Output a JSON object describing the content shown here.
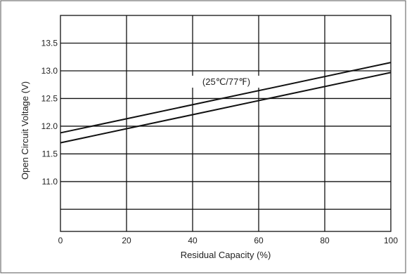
{
  "chart_data": {
    "type": "line",
    "title": "",
    "xlabel": "Residual Capacity (%)",
    "ylabel": "Open Circuit Voltage (V)",
    "xlim": [
      0,
      100
    ],
    "ylim": [
      10.1,
      14.0
    ],
    "x_ticks": [
      "0",
      "20",
      "40",
      "60",
      "80",
      "100"
    ],
    "y_ticks": [
      "11.0",
      "11.5",
      "12.0",
      "12.5",
      "13.0",
      "13.5"
    ],
    "grid": true,
    "annotation": "(25℃/77℉)",
    "series": [
      {
        "x": [
          0,
          100
        ],
        "y": [
          11.88,
          13.15
        ]
      },
      {
        "x": [
          0,
          100
        ],
        "y": [
          11.7,
          12.97
        ]
      }
    ]
  }
}
